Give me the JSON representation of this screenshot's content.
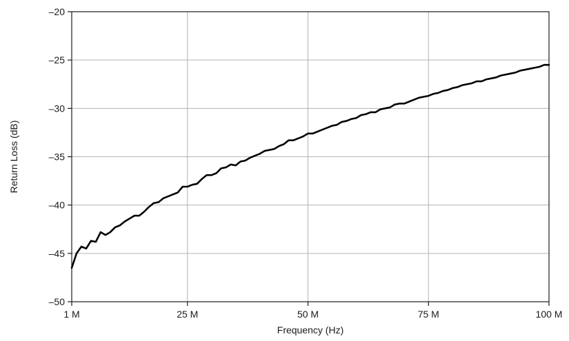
{
  "chart_data": {
    "type": "line",
    "title": "",
    "xlabel": "Frequency (Hz)",
    "ylabel": "Return Loss (dB)",
    "xlim": [
      1,
      100
    ],
    "ylim": [
      -50,
      -20
    ],
    "grid": true,
    "x_ticks": [
      {
        "value": 1,
        "label": "1 M"
      },
      {
        "value": 25,
        "label": "25 M"
      },
      {
        "value": 50,
        "label": "50 M"
      },
      {
        "value": 75,
        "label": "75 M"
      },
      {
        "value": 100,
        "label": "100 M"
      }
    ],
    "y_ticks": [
      {
        "value": -20,
        "label": "–20"
      },
      {
        "value": -25,
        "label": "–25"
      },
      {
        "value": -30,
        "label": "–30"
      },
      {
        "value": -35,
        "label": "–35"
      },
      {
        "value": -40,
        "label": "–40"
      },
      {
        "value": -45,
        "label": "–45"
      },
      {
        "value": -50,
        "label": "–50"
      }
    ],
    "series": [
      {
        "color": "#000000",
        "x": [
          1,
          2,
          3,
          4,
          5,
          6,
          7,
          8,
          9,
          10,
          11,
          12,
          13,
          14,
          15,
          16,
          17,
          18,
          19,
          20,
          21,
          22,
          23,
          24,
          25,
          26,
          27,
          28,
          29,
          30,
          31,
          32,
          33,
          34,
          35,
          36,
          37,
          38,
          39,
          40,
          41,
          42,
          43,
          44,
          45,
          46,
          47,
          48,
          49,
          50,
          51,
          52,
          53,
          54,
          55,
          56,
          57,
          58,
          59,
          60,
          61,
          62,
          63,
          64,
          65,
          66,
          67,
          68,
          69,
          70,
          71,
          72,
          73,
          74,
          75,
          76,
          77,
          78,
          79,
          80,
          81,
          82,
          83,
          84,
          85,
          86,
          87,
          88,
          89,
          90,
          91,
          92,
          93,
          94,
          95,
          96,
          97,
          98,
          99,
          100
        ],
        "y": [
          -46.5,
          -45.0,
          -44.3,
          -44.5,
          -43.7,
          -43.8,
          -42.8,
          -43.1,
          -42.8,
          -42.3,
          -42.1,
          -41.7,
          -41.4,
          -41.1,
          -41.1,
          -40.7,
          -40.2,
          -39.8,
          -39.7,
          -39.3,
          -39.1,
          -38.9,
          -38.7,
          -38.1,
          -38.1,
          -37.9,
          -37.8,
          -37.3,
          -36.9,
          -36.9,
          -36.7,
          -36.2,
          -36.1,
          -35.8,
          -35.9,
          -35.5,
          -35.4,
          -35.1,
          -34.9,
          -34.7,
          -34.4,
          -34.3,
          -34.2,
          -33.9,
          -33.7,
          -33.3,
          -33.3,
          -33.1,
          -32.9,
          -32.6,
          -32.6,
          -32.4,
          -32.2,
          -32.0,
          -31.8,
          -31.7,
          -31.4,
          -31.3,
          -31.1,
          -31.0,
          -30.7,
          -30.6,
          -30.4,
          -30.4,
          -30.1,
          -30.0,
          -29.9,
          -29.6,
          -29.5,
          -29.5,
          -29.3,
          -29.1,
          -28.9,
          -28.8,
          -28.7,
          -28.5,
          -28.4,
          -28.2,
          -28.1,
          -27.9,
          -27.8,
          -27.6,
          -27.5,
          -27.4,
          -27.2,
          -27.2,
          -27.0,
          -26.9,
          -26.8,
          -26.6,
          -26.5,
          -26.4,
          -26.3,
          -26.1,
          -26.0,
          -25.9,
          -25.8,
          -25.7,
          -25.5,
          -25.5
        ]
      }
    ]
  }
}
